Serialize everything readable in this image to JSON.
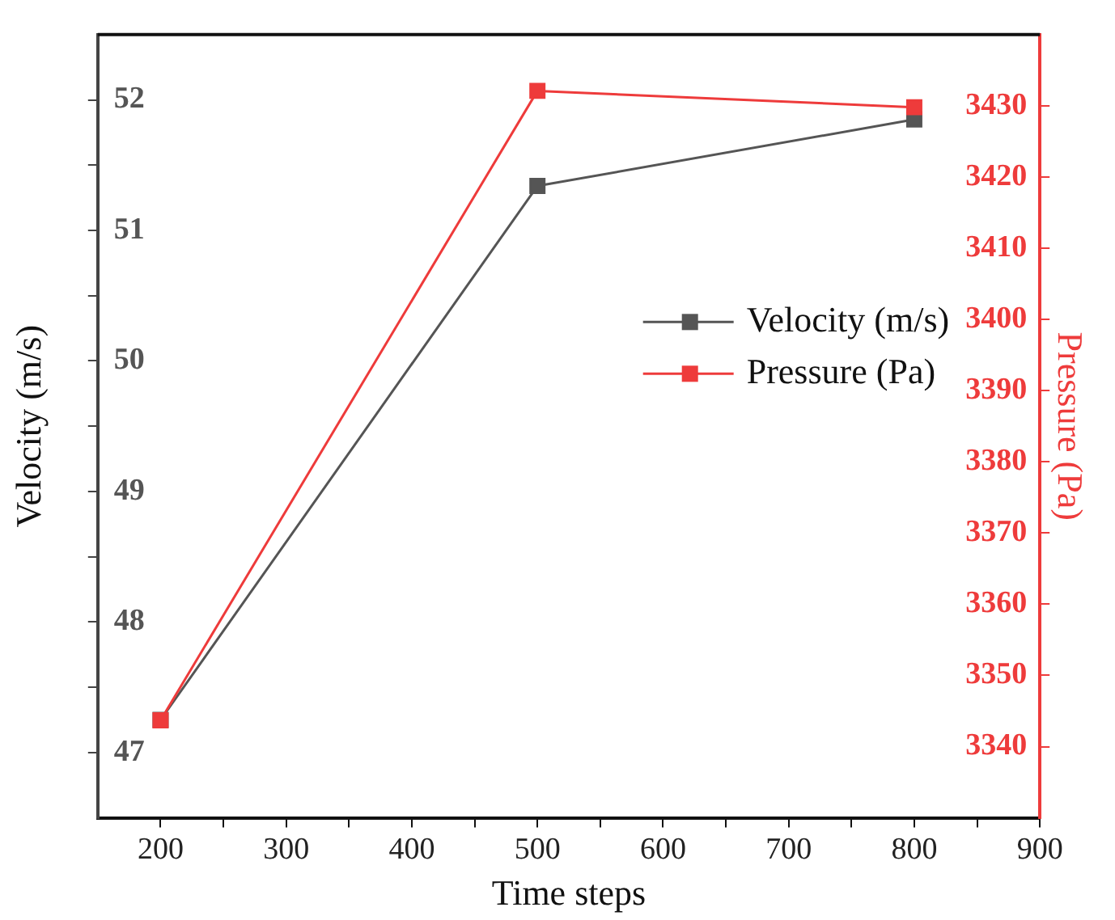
{
  "chart_data": {
    "type": "line",
    "xlabel": "Time steps",
    "ylabel": "Velocity (m/s)",
    "y2label": "Pressure (Pa)",
    "x": [
      200,
      500,
      800
    ],
    "series": [
      {
        "name": "Velocity (m/s)",
        "color": "#555555",
        "values": [
          47.25,
          51.34,
          51.85
        ]
      },
      {
        "name": "Pressure (Pa)",
        "color": "#ee3b3b",
        "axis": "y2",
        "values": [
          3343.7,
          3432.1,
          3429.8
        ]
      }
    ],
    "xlim": [
      150,
      900
    ],
    "xticks": [
      200,
      {
        "value": 250,
        "label": null
      },
      300,
      {
        "value": 350,
        "label": null
      },
      400,
      {
        "value": 450,
        "label": null
      },
      500,
      {
        "value": 550,
        "label": null
      },
      600,
      {
        "value": 650,
        "label": null
      },
      700,
      {
        "value": 750,
        "label": null
      },
      800,
      {
        "value": 850,
        "label": null
      },
      900
    ],
    "ylim": [
      46.5,
      52.5
    ],
    "yticks": [
      47,
      {
        "value": 47.5,
        "label": null
      },
      48,
      {
        "value": 48.5,
        "label": null
      },
      49,
      {
        "value": 49.5,
        "label": null
      },
      50,
      {
        "value": 50.5,
        "label": null
      },
      51,
      {
        "value": 51.5,
        "label": null
      },
      52
    ],
    "y2lim": [
      3330,
      3440
    ],
    "y2ticks": [
      3340,
      3350,
      3360,
      3370,
      3380,
      3390,
      3400,
      3410,
      3420,
      3430
    ],
    "legend": "right",
    "marker": "square",
    "line_style": "solid",
    "grid": false
  }
}
